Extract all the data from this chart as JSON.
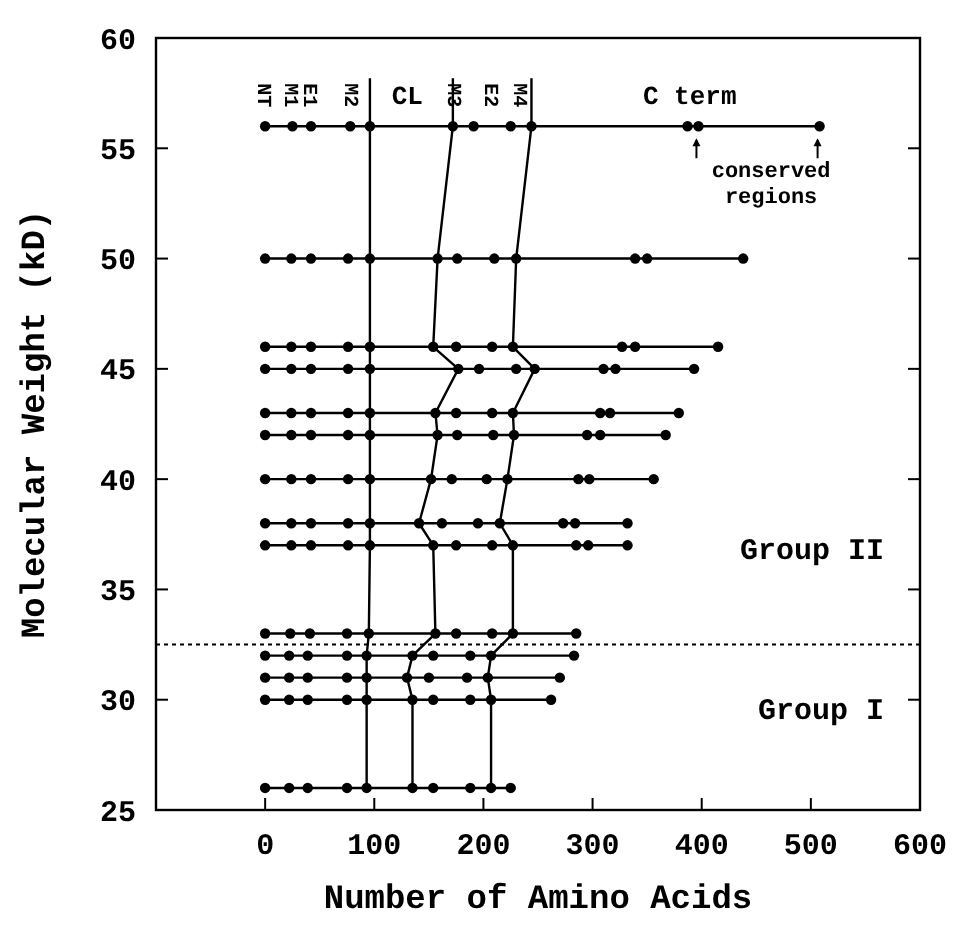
{
  "chart_data": {
    "type": "line",
    "xlabel": "Number of Amino Acids",
    "ylabel": "Molecular Weight (kD)",
    "xlim": [
      -100,
      600
    ],
    "xticks": [
      0,
      100,
      200,
      300,
      400,
      500,
      600
    ],
    "ylim": [
      25,
      60
    ],
    "yticks": [
      25,
      30,
      35,
      40,
      45,
      50,
      55,
      60
    ],
    "marker": "circle",
    "line_style": "solid",
    "grid": false,
    "series": [
      {
        "color": "#000000",
        "x": [
          0,
          25,
          42,
          78,
          96,
          172,
          191,
          225,
          244,
          387,
          397,
          508
        ],
        "values": [
          56,
          56,
          56,
          56,
          56,
          56,
          56,
          56,
          56,
          56,
          56,
          56
        ]
      },
      {
        "color": "#000000",
        "x": [
          0,
          24,
          42,
          76,
          96,
          158,
          176,
          210,
          230,
          339,
          350,
          438
        ],
        "values": [
          50,
          50,
          50,
          50,
          50,
          50,
          50,
          50,
          50,
          50,
          50,
          50
        ]
      },
      {
        "color": "#000000",
        "x": [
          0,
          24,
          42,
          76,
          96,
          154,
          175,
          208,
          227,
          327,
          339,
          415
        ],
        "values": [
          46,
          46,
          46,
          46,
          46,
          46,
          46,
          46,
          46,
          46,
          46,
          46
        ]
      },
      {
        "color": "#000000",
        "x": [
          0,
          24,
          42,
          76,
          96,
          177,
          196,
          230,
          247,
          310,
          321,
          393
        ],
        "values": [
          45,
          45,
          45,
          45,
          45,
          45,
          45,
          45,
          45,
          45,
          45,
          45
        ]
      },
      {
        "color": "#000000",
        "x": [
          0,
          24,
          42,
          76,
          96,
          156,
          175,
          208,
          227,
          307,
          316,
          379
        ],
        "values": [
          43,
          43,
          43,
          43,
          43,
          43,
          43,
          43,
          43,
          43,
          43,
          43
        ]
      },
      {
        "color": "#000000",
        "x": [
          0,
          24,
          42,
          76,
          96,
          158,
          176,
          209,
          228,
          295,
          307,
          367
        ],
        "values": [
          42,
          42,
          42,
          42,
          42,
          42,
          42,
          42,
          42,
          42,
          42,
          42
        ]
      },
      {
        "color": "#000000",
        "x": [
          0,
          24,
          42,
          76,
          96,
          152,
          171,
          203,
          222,
          287,
          297,
          356
        ],
        "values": [
          40,
          40,
          40,
          40,
          40,
          40,
          40,
          40,
          40,
          40,
          40,
          40
        ]
      },
      {
        "color": "#000000",
        "x": [
          0,
          24,
          42,
          76,
          96,
          141,
          162,
          195,
          215,
          273,
          284,
          332
        ],
        "values": [
          38,
          38,
          38,
          38,
          38,
          38,
          38,
          38,
          38,
          38,
          38,
          38
        ]
      },
      {
        "color": "#000000",
        "x": [
          0,
          24,
          42,
          76,
          96,
          154,
          175,
          208,
          227,
          285,
          296,
          332
        ],
        "values": [
          37,
          37,
          37,
          37,
          37,
          37,
          37,
          37,
          37,
          37,
          37,
          37
        ]
      },
      {
        "color": "#000000",
        "x": [
          0,
          23,
          41,
          75,
          95,
          156,
          175,
          208,
          227,
          285
        ],
        "values": [
          33,
          33,
          33,
          33,
          33,
          33,
          33,
          33,
          33,
          33
        ]
      },
      {
        "color": "#000000",
        "x": [
          0,
          22,
          39,
          75,
          93,
          135,
          154,
          188,
          207,
          283
        ],
        "values": [
          32,
          32,
          32,
          32,
          32,
          32,
          32,
          32,
          32,
          32
        ]
      },
      {
        "color": "#000000",
        "x": [
          0,
          22,
          39,
          75,
          93,
          130,
          150,
          185,
          204,
          270
        ],
        "values": [
          31,
          31,
          31,
          31,
          31,
          31,
          31,
          31,
          31,
          31
        ]
      },
      {
        "color": "#000000",
        "x": [
          0,
          22,
          39,
          75,
          93,
          135,
          154,
          188,
          207,
          262
        ],
        "values": [
          30,
          30,
          30,
          30,
          30,
          30,
          30,
          30,
          30,
          30
        ]
      },
      {
        "color": "#000000",
        "x": [
          0,
          22,
          39,
          75,
          93,
          135,
          154,
          188,
          207,
          225
        ],
        "values": [
          26,
          26,
          26,
          26,
          26,
          26,
          26,
          26,
          26,
          26
        ]
      },
      {
        "color": "#000000",
        "marker": "none",
        "x": [
          96,
          96,
          96,
          96,
          96,
          96,
          96,
          96,
          96,
          95,
          93,
          93,
          93,
          93
        ],
        "values": [
          56,
          50,
          46,
          45,
          43,
          42,
          40,
          38,
          37,
          33,
          32,
          31,
          30,
          26
        ]
      },
      {
        "color": "#000000",
        "marker": "none",
        "x": [
          172,
          158,
          154,
          177,
          156,
          158,
          152,
          141,
          154,
          156,
          135,
          130,
          135,
          135
        ],
        "values": [
          56,
          50,
          46,
          45,
          43,
          42,
          40,
          38,
          37,
          33,
          32,
          31,
          30,
          26
        ]
      },
      {
        "color": "#000000",
        "marker": "none",
        "x": [
          244,
          230,
          227,
          247,
          227,
          228,
          222,
          215,
          227,
          227,
          207,
          204,
          207,
          207
        ],
        "values": [
          56,
          50,
          46,
          45,
          43,
          42,
          40,
          38,
          37,
          33,
          32,
          31,
          30,
          26
        ]
      }
    ],
    "ref_lines": [
      {
        "axis": "y",
        "value": 32.5,
        "line_style": "dotted",
        "color": "#000000"
      }
    ],
    "annotations": [
      "NT",
      "M1",
      "E1",
      "M2",
      "CL",
      "M3",
      "E2",
      "M4",
      "C term",
      "conserved regions",
      "Group II",
      "Group I"
    ]
  }
}
